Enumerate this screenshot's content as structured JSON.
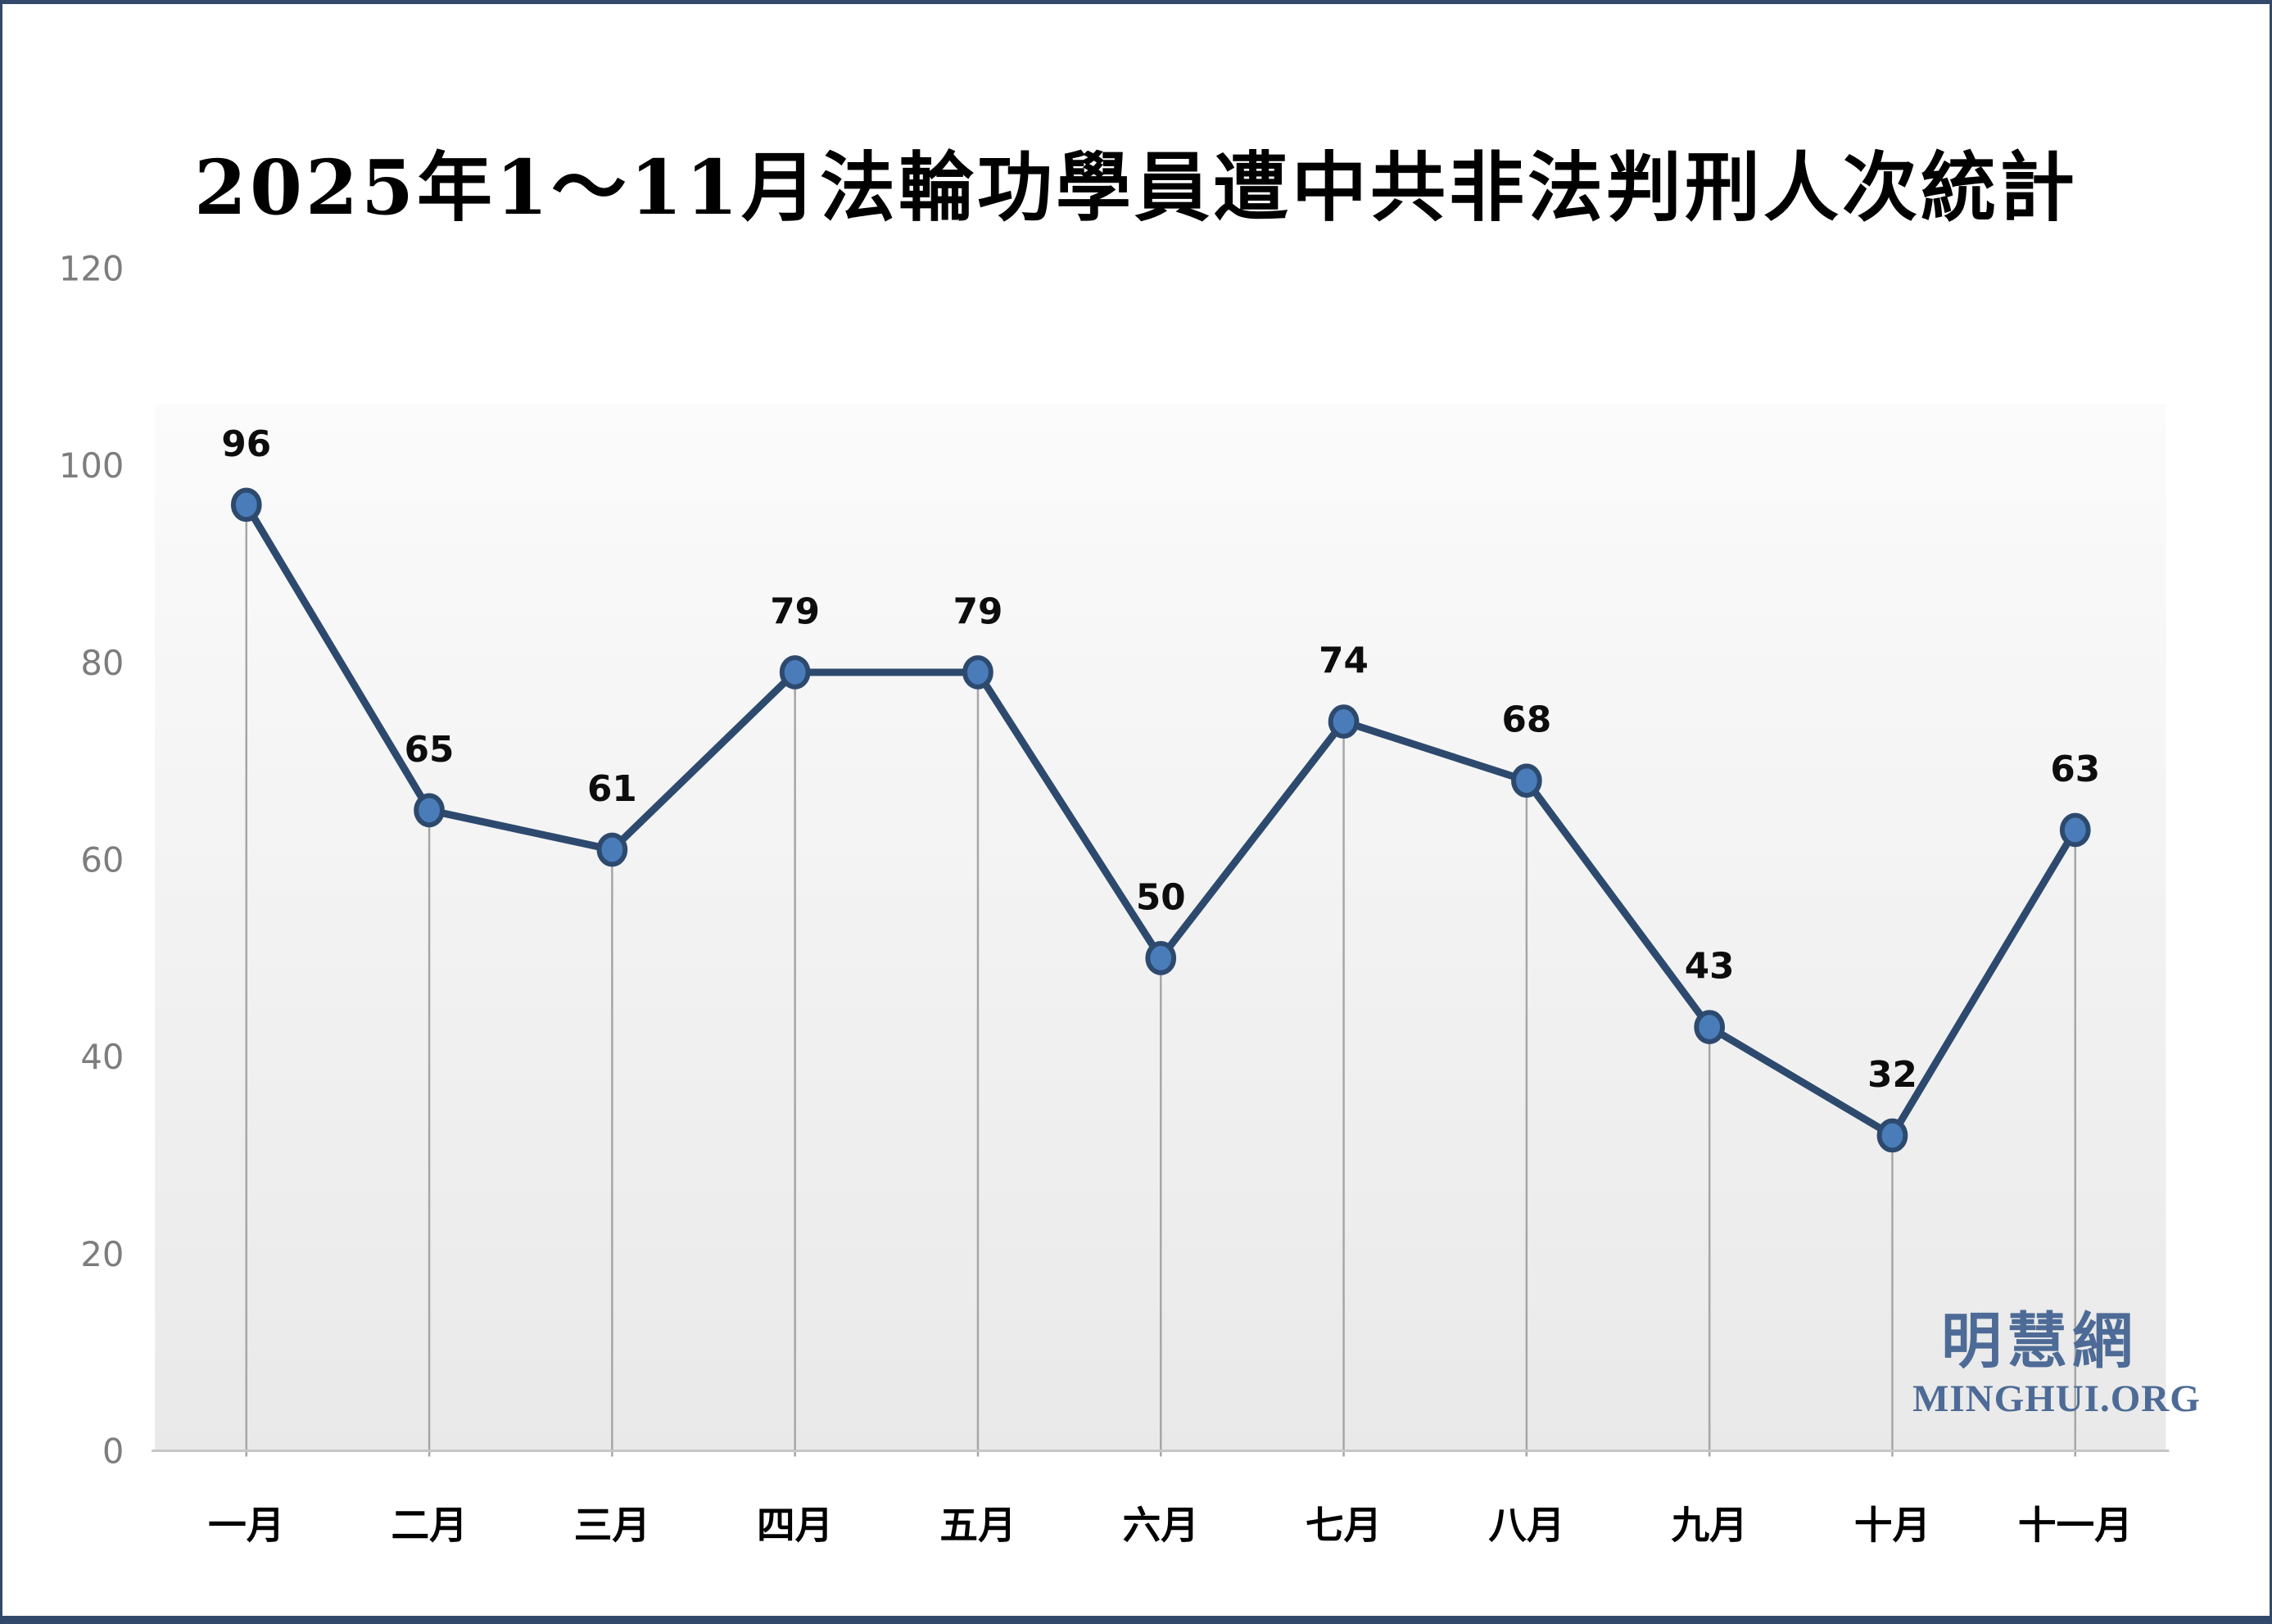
{
  "chart_data": {
    "type": "line",
    "title": "2025年1～11月法輪功學員遭中共非法判刑人次統計",
    "categories": [
      "一月",
      "二月",
      "三月",
      "四月",
      "五月",
      "六月",
      "七月",
      "八月",
      "九月",
      "十月",
      "十一月"
    ],
    "values": [
      96,
      65,
      61,
      79,
      79,
      50,
      74,
      68,
      43,
      32,
      63
    ],
    "data_labels_shown": true,
    "xlabel": "",
    "ylabel": "",
    "ylim": [
      0,
      120
    ],
    "yticks": [
      0,
      20,
      40,
      60,
      80,
      100,
      120
    ],
    "legend": "none",
    "grid": "none",
    "drop_lines": true,
    "colors": {
      "line": "#2d4a6e",
      "marker_fill": "#4a7cba",
      "marker_stroke": "#2d4a6e",
      "drop_line": "#a6a6a6",
      "axis_line": "#c6c6c6",
      "y_tick_label": "#7d7d7d",
      "x_tick_label": "#000000",
      "data_label": "#0d0d0d",
      "plot_band_top": "#fbfbfb",
      "plot_band_bottom": "#e9e9e9"
    }
  },
  "watermark": {
    "cjk": "明慧網",
    "latin": "MINGHUI.ORG",
    "color": "#4d6b96"
  },
  "frame": {
    "border_color": "#33496b",
    "background": "#ffffff"
  }
}
